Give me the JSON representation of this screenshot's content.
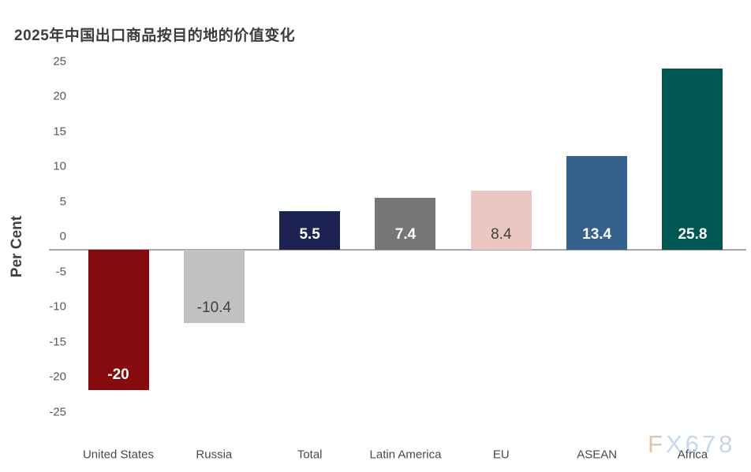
{
  "title": "2025年中国出口商品按目的地的价值变化",
  "watermark": {
    "text": "FX678",
    "letters": [
      {
        "char": "F",
        "color": "#dcc5ac"
      },
      {
        "char": "X",
        "color": "#c4d9ed"
      },
      {
        "char": "6",
        "color": "#c4d9ed"
      },
      {
        "char": "7",
        "color": "#c4d9ed"
      },
      {
        "char": "8",
        "color": "#ccd5e2"
      }
    ]
  },
  "chart_data": {
    "type": "bar",
    "title": "2025年中国出口商品按目的地的价值变化",
    "ylabel": "Per Cent",
    "xlabel": "",
    "categories": [
      "United States",
      "Russia",
      "Total",
      "Latin America",
      "EU",
      "ASEAN",
      "Africa"
    ],
    "values": [
      -20,
      -10.4,
      5.5,
      7.4,
      8.4,
      13.4,
      25.8
    ],
    "data_labels": [
      "-20",
      "-10.4",
      "5.5",
      "7.4",
      "8.4",
      "13.4",
      "25.8"
    ],
    "bar_colors": [
      "#850b0e",
      "#c1c1c1",
      "#1c2251",
      "#767676",
      "#eac7c1",
      "#35618f",
      "#005650"
    ],
    "value_label_colors": [
      "#ffffff",
      "#3f3f3f",
      "#ffffff",
      "#ffffff",
      "#3f3f3f",
      "#ffffff",
      "#ffffff"
    ],
    "ylim": [
      -25,
      25
    ],
    "yticks": [
      25,
      20,
      15,
      10,
      5,
      0,
      -5,
      -10,
      -15,
      -20,
      -25
    ],
    "grid": false,
    "legend": false,
    "axis_line_color": "#a6a6a6",
    "tick_label_color": "#595959"
  }
}
